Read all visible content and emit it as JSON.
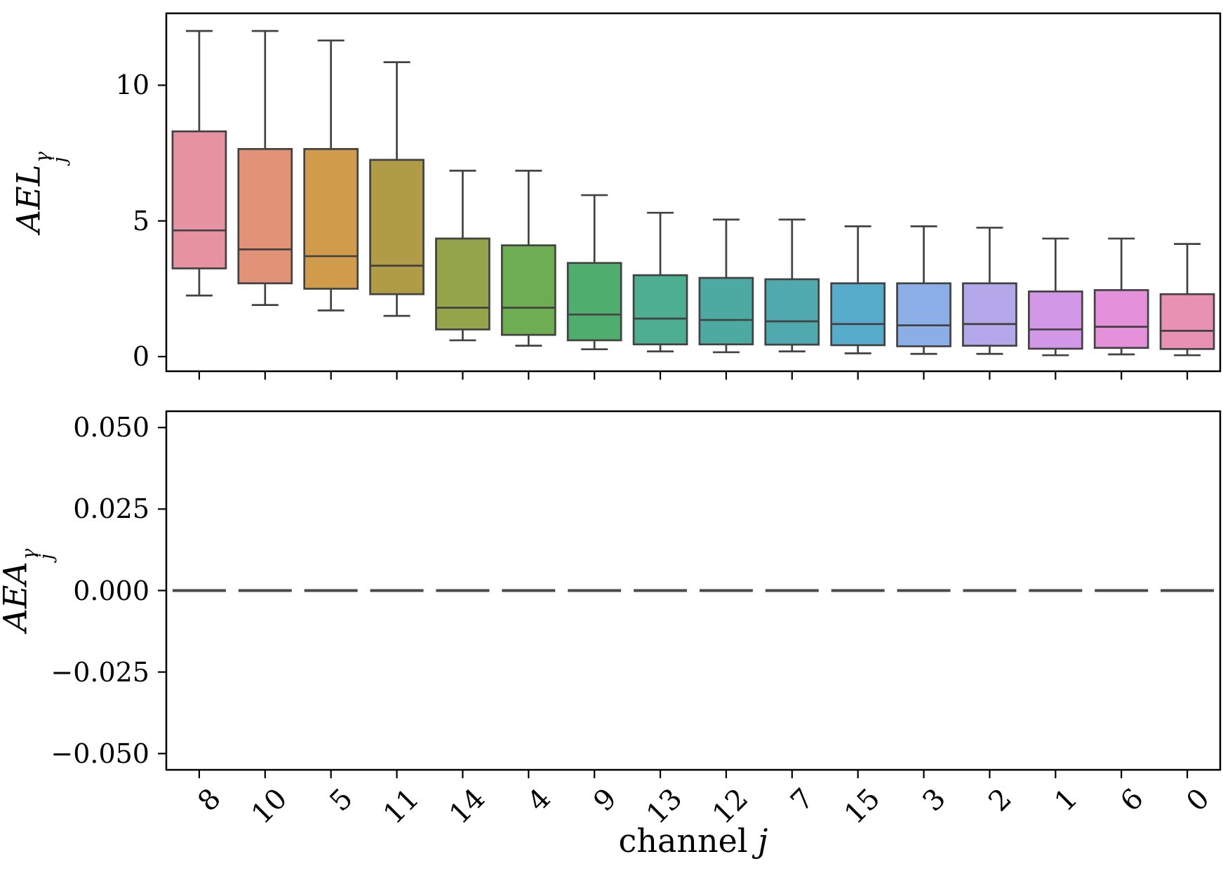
{
  "figure": {
    "background": "#ffffff",
    "spine_color": "#000000",
    "box_edge_color": "#424242",
    "zero_dash_color": "#4a4a4a",
    "xlabel": {
      "prefix": "channel ",
      "variable": "j"
    },
    "top": {
      "ylabel": {
        "base": "AEL",
        "sup": "γ",
        "sub": "j"
      }
    },
    "bottom": {
      "ylabel": {
        "base": "AEA",
        "sup": "γ",
        "sub": "j"
      }
    }
  },
  "chart_data": [
    {
      "type": "boxplot",
      "title": "",
      "xlabel": "",
      "ylabel": "AEL_j^gamma",
      "legend": "none",
      "grid": false,
      "categories": [
        "8",
        "10",
        "5",
        "11",
        "14",
        "4",
        "9",
        "13",
        "12",
        "7",
        "15",
        "3",
        "2",
        "1",
        "6",
        "0"
      ],
      "stats": [
        {
          "whislo": 2.25,
          "q1": 3.25,
          "med": 4.65,
          "q3": 8.3,
          "whishi": 12.0
        },
        {
          "whislo": 1.9,
          "q1": 2.7,
          "med": 3.95,
          "q3": 7.65,
          "whishi": 12.0
        },
        {
          "whislo": 1.7,
          "q1": 2.5,
          "med": 3.7,
          "q3": 7.65,
          "whishi": 11.65
        },
        {
          "whislo": 1.5,
          "q1": 2.3,
          "med": 3.35,
          "q3": 7.25,
          "whishi": 10.85
        },
        {
          "whislo": 0.6,
          "q1": 1.0,
          "med": 1.8,
          "q3": 4.35,
          "whishi": 6.85
        },
        {
          "whislo": 0.4,
          "q1": 0.8,
          "med": 1.8,
          "q3": 4.1,
          "whishi": 6.85
        },
        {
          "whislo": 0.27,
          "q1": 0.6,
          "med": 1.55,
          "q3": 3.45,
          "whishi": 5.95
        },
        {
          "whislo": 0.19,
          "q1": 0.45,
          "med": 1.4,
          "q3": 3.0,
          "whishi": 5.3
        },
        {
          "whislo": 0.16,
          "q1": 0.45,
          "med": 1.35,
          "q3": 2.9,
          "whishi": 5.05
        },
        {
          "whislo": 0.19,
          "q1": 0.44,
          "med": 1.3,
          "q3": 2.85,
          "whishi": 5.05
        },
        {
          "whislo": 0.12,
          "q1": 0.42,
          "med": 1.2,
          "q3": 2.7,
          "whishi": 4.8
        },
        {
          "whislo": 0.1,
          "q1": 0.38,
          "med": 1.15,
          "q3": 2.7,
          "whishi": 4.8
        },
        {
          "whislo": 0.1,
          "q1": 0.4,
          "med": 1.2,
          "q3": 2.7,
          "whishi": 4.75
        },
        {
          "whislo": 0.05,
          "q1": 0.29,
          "med": 1.0,
          "q3": 2.4,
          "whishi": 4.35
        },
        {
          "whislo": 0.08,
          "q1": 0.32,
          "med": 1.1,
          "q3": 2.45,
          "whishi": 4.35
        },
        {
          "whislo": 0.05,
          "q1": 0.28,
          "med": 0.95,
          "q3": 2.3,
          "whishi": 4.15
        }
      ],
      "colors": [
        "#e792a0",
        "#e19277",
        "#d09b4b",
        "#b09c47",
        "#94a44a",
        "#6ead52",
        "#4fae6d",
        "#4dae90",
        "#4daaa2",
        "#50a9ae",
        "#57abcb",
        "#8caee6",
        "#b4a7ea",
        "#d297e6",
        "#e590da",
        "#e991b2"
      ],
      "ylim": [
        -0.54,
        12.65
      ],
      "yticks": [
        {
          "v": 0,
          "label": "0"
        },
        {
          "v": 5,
          "label": "5"
        },
        {
          "v": 10,
          "label": "10"
        }
      ],
      "xtick_labels_shown": false
    },
    {
      "type": "boxplot",
      "title": "",
      "xlabel": "channel j",
      "ylabel": "AEA_j^gamma",
      "legend": "none",
      "grid": false,
      "categories": [
        "8",
        "10",
        "5",
        "11",
        "14",
        "4",
        "9",
        "13",
        "12",
        "7",
        "15",
        "3",
        "2",
        "1",
        "6",
        "0"
      ],
      "stats": [
        {
          "whislo": 0,
          "q1": 0,
          "med": 0,
          "q3": 0,
          "whishi": 0
        },
        {
          "whislo": 0,
          "q1": 0,
          "med": 0,
          "q3": 0,
          "whishi": 0
        },
        {
          "whislo": 0,
          "q1": 0,
          "med": 0,
          "q3": 0,
          "whishi": 0
        },
        {
          "whislo": 0,
          "q1": 0,
          "med": 0,
          "q3": 0,
          "whishi": 0
        },
        {
          "whislo": 0,
          "q1": 0,
          "med": 0,
          "q3": 0,
          "whishi": 0
        },
        {
          "whislo": 0,
          "q1": 0,
          "med": 0,
          "q3": 0,
          "whishi": 0
        },
        {
          "whislo": 0,
          "q1": 0,
          "med": 0,
          "q3": 0,
          "whishi": 0
        },
        {
          "whislo": 0,
          "q1": 0,
          "med": 0,
          "q3": 0,
          "whishi": 0
        },
        {
          "whislo": 0,
          "q1": 0,
          "med": 0,
          "q3": 0,
          "whishi": 0
        },
        {
          "whislo": 0,
          "q1": 0,
          "med": 0,
          "q3": 0,
          "whishi": 0
        },
        {
          "whislo": 0,
          "q1": 0,
          "med": 0,
          "q3": 0,
          "whishi": 0
        },
        {
          "whislo": 0,
          "q1": 0,
          "med": 0,
          "q3": 0,
          "whishi": 0
        },
        {
          "whislo": 0,
          "q1": 0,
          "med": 0,
          "q3": 0,
          "whishi": 0
        },
        {
          "whislo": 0,
          "q1": 0,
          "med": 0,
          "q3": 0,
          "whishi": 0
        },
        {
          "whislo": 0,
          "q1": 0,
          "med": 0,
          "q3": 0,
          "whishi": 0
        },
        {
          "whislo": 0,
          "q1": 0,
          "med": 0,
          "q3": 0,
          "whishi": 0
        }
      ],
      "colors": [
        "#e792a0",
        "#e19277",
        "#d09b4b",
        "#b09c47",
        "#94a44a",
        "#6ead52",
        "#4fae6d",
        "#4dae90",
        "#4daaa2",
        "#50a9ae",
        "#57abcb",
        "#8caee6",
        "#b4a7ea",
        "#d297e6",
        "#e590da",
        "#e991b2"
      ],
      "ylim": [
        -0.055,
        0.055
      ],
      "yticks": [
        {
          "v": 0.05,
          "label": "0.050"
        },
        {
          "v": 0.025,
          "label": "0.025"
        },
        {
          "v": 0.0,
          "label": "0.000"
        },
        {
          "v": -0.025,
          "label": "−0.025"
        },
        {
          "v": -0.05,
          "label": "−0.050"
        }
      ],
      "xtick_labels_shown": true
    }
  ]
}
